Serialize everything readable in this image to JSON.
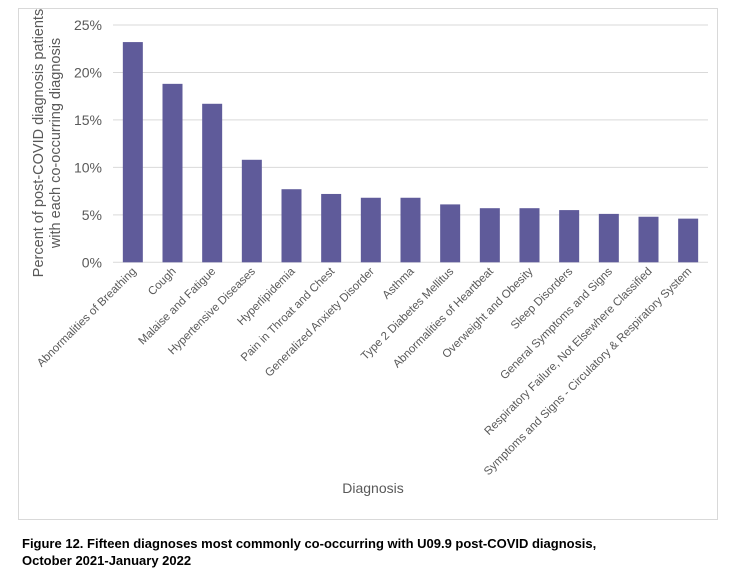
{
  "chart_data": {
    "type": "bar",
    "title": "",
    "xlabel": "Diagnosis",
    "ylabel": "Percent of post-COVID diagnosis patients with each co-occurring diagnosis",
    "ylabel_lines": [
      "Percent of post-COVID diagnosis patients",
      "with each co-occurring diagnosis"
    ],
    "ylim": [
      0,
      25
    ],
    "yticks": [
      "0%",
      "5%",
      "10%",
      "15%",
      "20%",
      "25%"
    ],
    "grid": true,
    "bar_color": "#5f5b9a",
    "categories": [
      "Abnormalities of Breathing",
      "Cough",
      "Malaise and Fatigue",
      "Hypertensive Diseases",
      "Hyperlipidemia",
      "Pain in Throat and Chest",
      "Generalized Anxiety Disorder",
      "Asthma",
      "Type 2 Diabetes Mellitus",
      "Abnormalities of Heartbeat",
      "Overweight and Obesity",
      "Sleep Disorders",
      "General Symptoms and Signs",
      "Respiratory Failure, Not Elsewhere Classified",
      "Symptoms and Signs - Circulatory & Respiratory System"
    ],
    "values": [
      23.2,
      18.8,
      16.7,
      10.8,
      7.7,
      7.2,
      6.8,
      6.8,
      6.1,
      5.7,
      5.7,
      5.5,
      5.1,
      4.8,
      4.6
    ]
  },
  "caption": {
    "line1": "Figure 12. Fifteen diagnoses most commonly co-occurring with U09.9 post-COVID diagnosis,",
    "line2": "October 2021-January 2022"
  }
}
